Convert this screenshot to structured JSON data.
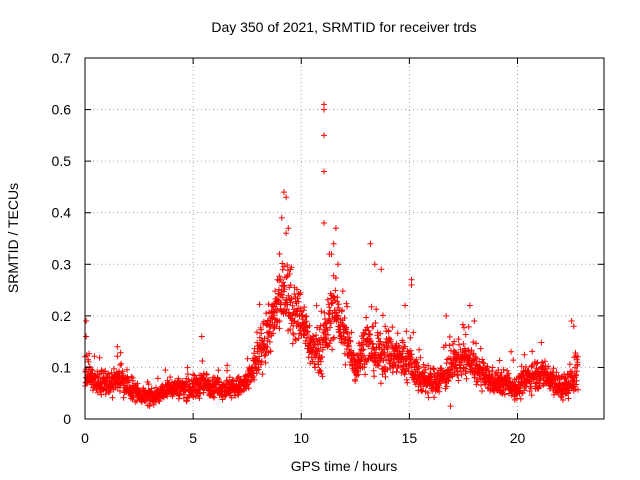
{
  "chart_data": {
    "type": "scatter",
    "title": "Day 350 of 2021, SRMTID for receiver trds",
    "xlabel": "GPS time / hours",
    "ylabel": "SRMTID / TECUs",
    "xlim": [
      0,
      24
    ],
    "ylim": [
      0,
      0.7
    ],
    "xticks": [
      0,
      5,
      10,
      15,
      20
    ],
    "xtick_labels": [
      "0",
      "5",
      "10",
      "15",
      "20"
    ],
    "yticks": [
      0,
      0.1,
      0.2,
      0.3,
      0.4,
      0.5,
      0.6,
      0.7
    ],
    "ytick_labels": [
      "0",
      "0.1",
      "0.2",
      "0.3",
      "0.4",
      "0.5",
      "0.6",
      "0.7"
    ],
    "grid": true,
    "marker": "+",
    "series_color": "#ff0000",
    "series": [
      {
        "name": "SRMTID",
        "profile_hours": [
          0,
          0.5,
          1,
          1.5,
          2,
          2.5,
          3,
          3.5,
          4,
          4.5,
          5,
          5.5,
          6,
          6.5,
          7,
          7.5,
          8,
          8.5,
          9,
          9.3,
          9.6,
          10,
          10.5,
          11,
          11.5,
          12,
          12.5,
          13,
          13.5,
          14,
          14.5,
          15,
          15.5,
          16,
          16.5,
          17,
          17.5,
          18,
          18.5,
          19,
          19.5,
          20,
          20.5,
          21,
          21.5,
          22,
          22.5,
          22.8
        ],
        "profile_median": [
          0.09,
          0.07,
          0.07,
          0.08,
          0.06,
          0.05,
          0.04,
          0.05,
          0.06,
          0.06,
          0.06,
          0.07,
          0.06,
          0.06,
          0.06,
          0.07,
          0.12,
          0.17,
          0.22,
          0.25,
          0.2,
          0.2,
          0.13,
          0.14,
          0.22,
          0.16,
          0.1,
          0.15,
          0.12,
          0.13,
          0.12,
          0.11,
          0.08,
          0.07,
          0.08,
          0.1,
          0.12,
          0.1,
          0.08,
          0.07,
          0.07,
          0.06,
          0.08,
          0.09,
          0.08,
          0.06,
          0.07,
          0.1
        ],
        "profile_spread": [
          0.04,
          0.03,
          0.03,
          0.03,
          0.03,
          0.02,
          0.02,
          0.02,
          0.025,
          0.025,
          0.03,
          0.03,
          0.025,
          0.025,
          0.025,
          0.03,
          0.05,
          0.06,
          0.08,
          0.09,
          0.07,
          0.07,
          0.05,
          0.06,
          0.08,
          0.06,
          0.04,
          0.06,
          0.05,
          0.06,
          0.05,
          0.05,
          0.04,
          0.035,
          0.035,
          0.045,
          0.05,
          0.04,
          0.035,
          0.03,
          0.03,
          0.03,
          0.035,
          0.04,
          0.035,
          0.03,
          0.035,
          0.05
        ],
        "outliers": [
          [
            0.05,
            0.19
          ],
          [
            0.05,
            0.16
          ],
          [
            1.5,
            0.14
          ],
          [
            5.4,
            0.16
          ],
          [
            9.2,
            0.44
          ],
          [
            9.3,
            0.43
          ],
          [
            9.1,
            0.39
          ],
          [
            9.3,
            0.36
          ],
          [
            9.0,
            0.32
          ],
          [
            8.9,
            0.27
          ],
          [
            9.5,
            0.29
          ],
          [
            9.4,
            0.37
          ],
          [
            11.05,
            0.61
          ],
          [
            11.05,
            0.6
          ],
          [
            11.05,
            0.55
          ],
          [
            11.05,
            0.48
          ],
          [
            11.05,
            0.38
          ],
          [
            11.6,
            0.37
          ],
          [
            11.5,
            0.34
          ],
          [
            11.3,
            0.32
          ],
          [
            11.7,
            0.3
          ],
          [
            13.2,
            0.34
          ],
          [
            13.4,
            0.3
          ],
          [
            13.7,
            0.29
          ],
          [
            15.1,
            0.27
          ],
          [
            15.1,
            0.26
          ],
          [
            14.8,
            0.22
          ],
          [
            16.7,
            0.2
          ],
          [
            17.8,
            0.22
          ],
          [
            18.0,
            0.19
          ],
          [
            22.5,
            0.19
          ],
          [
            22.6,
            0.18
          ],
          [
            16.9,
            0.025
          ],
          [
            10.8,
            0.09
          ]
        ]
      }
    ]
  }
}
